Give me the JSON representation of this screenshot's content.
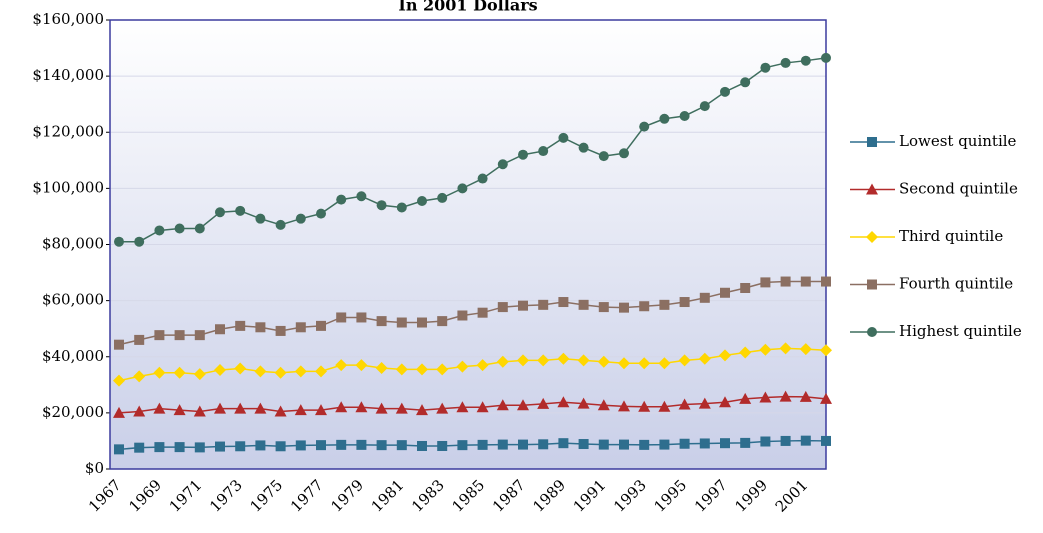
{
  "chart_data": {
    "type": "line",
    "title": "In 2001 Dollars",
    "categories": [
      "1967",
      null,
      "1969",
      null,
      "1971",
      null,
      "1973",
      null,
      "1975",
      null,
      "1977",
      null,
      "1979",
      null,
      "1981",
      null,
      "1983",
      null,
      "1985",
      null,
      "1987",
      null,
      "1989",
      null,
      "1991",
      null,
      "1993",
      null,
      "1995",
      null,
      "1997",
      null,
      "1999",
      null,
      "2001",
      null
    ],
    "series": [
      {
        "name": "Lowest quintile",
        "color": "#2e6e8e",
        "marker": "square",
        "values": [
          7000,
          7600,
          7800,
          7800,
          7700,
          8000,
          8100,
          8400,
          8100,
          8400,
          8500,
          8600,
          8600,
          8500,
          8500,
          8200,
          8200,
          8500,
          8600,
          8700,
          8700,
          8800,
          9200,
          8900,
          8700,
          8700,
          8600,
          8700,
          9000,
          9100,
          9200,
          9300,
          9800,
          10000,
          10100,
          10000
        ]
      },
      {
        "name": "Second quintile",
        "color": "#b22b2b",
        "marker": "triangle",
        "values": [
          20000,
          20500,
          21500,
          21000,
          20500,
          21500,
          21500,
          21500,
          20500,
          21000,
          21000,
          22000,
          22000,
          21500,
          21500,
          21000,
          21500,
          22000,
          22000,
          22700,
          22700,
          23200,
          23800,
          23300,
          22700,
          22300,
          22200,
          22200,
          23000,
          23300,
          23800,
          25000,
          25500,
          25800,
          25700,
          25000
        ]
      },
      {
        "name": "Third quintile",
        "color": "#ffd700",
        "marker": "diamond",
        "values": [
          31500,
          33000,
          34300,
          34300,
          33800,
          35300,
          35800,
          34800,
          34300,
          34800,
          34800,
          37000,
          37000,
          36000,
          35500,
          35500,
          35500,
          36500,
          37000,
          38200,
          38700,
          38700,
          39300,
          38700,
          38200,
          37700,
          37700,
          37700,
          38700,
          39300,
          40500,
          41500,
          42500,
          43000,
          42700,
          42300
        ]
      },
      {
        "name": "Fourth quintile",
        "color": "#8b6f62",
        "marker": "square",
        "values": [
          44300,
          46000,
          47700,
          47700,
          47700,
          49800,
          51000,
          50500,
          49200,
          50500,
          51000,
          54000,
          54000,
          52700,
          52200,
          52200,
          52700,
          54700,
          55700,
          57700,
          58200,
          58500,
          59500,
          58500,
          57700,
          57500,
          58000,
          58500,
          59500,
          61000,
          62800,
          64500,
          66500,
          66800,
          66800,
          66800
        ]
      },
      {
        "name": "Highest quintile",
        "color": "#3f6e5e",
        "marker": "circle",
        "values": [
          81000,
          81000,
          85000,
          85700,
          85700,
          91500,
          92000,
          89200,
          87000,
          89200,
          91000,
          96000,
          97200,
          94000,
          93200,
          95500,
          96600,
          100000,
          103500,
          108600,
          112000,
          113300,
          118000,
          114500,
          111500,
          112500,
          122000,
          124800,
          125800,
          129300,
          134400,
          137800,
          143000,
          144700,
          145500,
          146500
        ]
      }
    ],
    "ylim": [
      0,
      160000
    ],
    "yticks": [
      {
        "value": 0,
        "label": "$0"
      },
      {
        "value": 20000,
        "label": "$20,000"
      },
      {
        "value": 40000,
        "label": "$40,000"
      },
      {
        "value": 60000,
        "label": "$60,000"
      },
      {
        "value": 80000,
        "label": "$80,000"
      },
      {
        "value": 100000,
        "label": "$100,000"
      },
      {
        "value": 120000,
        "label": "$120,000"
      },
      {
        "value": 140000,
        "label": "$140,000"
      },
      {
        "value": 160000,
        "label": "$160,000"
      }
    ],
    "grid": true,
    "legend": "right"
  }
}
